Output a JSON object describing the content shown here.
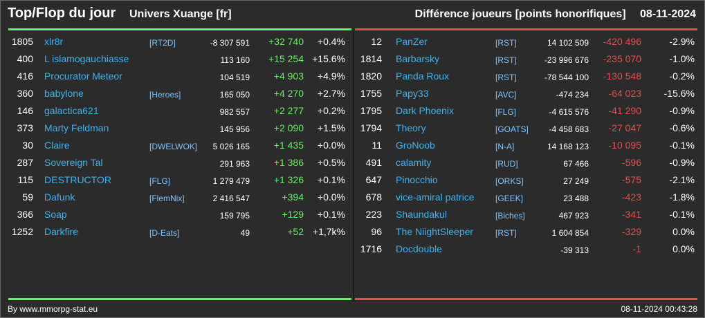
{
  "header": {
    "title": "Top/Flop du jour",
    "universe": "Univers Xuange [fr]",
    "category": "Différence joueurs [points honorifiques]",
    "date": "08-11-2024"
  },
  "colors": {
    "positive": "#66ee66",
    "negative": "#e05050",
    "name": "#3fb2ee"
  },
  "top": [
    {
      "rank": "1805",
      "name": "xlr8r",
      "guild": "[RT2D]",
      "total": "-8 307 591",
      "diff": "+32 740",
      "pct": "+0.4%"
    },
    {
      "rank": "400",
      "name": "L islamogauchiasse",
      "guild": "",
      "total": "113 160",
      "diff": "+15 254",
      "pct": "+15.6%"
    },
    {
      "rank": "416",
      "name": "Procurator Meteor",
      "guild": "",
      "total": "104 519",
      "diff": "+4 903",
      "pct": "+4.9%"
    },
    {
      "rank": "360",
      "name": "babylone",
      "guild": "[Heroes]",
      "total": "165 050",
      "diff": "+4 270",
      "pct": "+2.7%"
    },
    {
      "rank": "146",
      "name": "galactica621",
      "guild": "",
      "total": "982 557",
      "diff": "+2 277",
      "pct": "+0.2%"
    },
    {
      "rank": "373",
      "name": "Marty Feldman",
      "guild": "",
      "total": "145 956",
      "diff": "+2 090",
      "pct": "+1.5%"
    },
    {
      "rank": "30",
      "name": "Claire",
      "guild": "[DWELWOK]",
      "total": "5 026 165",
      "diff": "+1 435",
      "pct": "+0.0%"
    },
    {
      "rank": "287",
      "name": "Sovereign Tal",
      "guild": "",
      "total": "291 963",
      "diff": "+1 386",
      "pct": "+0.5%"
    },
    {
      "rank": "115",
      "name": "DESTRUCTOR",
      "guild": "[FLG]",
      "total": "1 279 479",
      "diff": "+1 326",
      "pct": "+0.1%"
    },
    {
      "rank": "59",
      "name": "Dafunk",
      "guild": "[FlemNix]",
      "total": "2 416 547",
      "diff": "+394",
      "pct": "+0.0%"
    },
    {
      "rank": "366",
      "name": "Soap",
      "guild": "",
      "total": "159 795",
      "diff": "+129",
      "pct": "+0.1%"
    },
    {
      "rank": "1252",
      "name": "Darkfire",
      "guild": "[D-Eats]",
      "total": "49",
      "diff": "+52",
      "pct": "+1,7k%"
    }
  ],
  "flop": [
    {
      "rank": "12",
      "name": "PanZer",
      "guild": "[RST]",
      "total": "14 102 509",
      "diff": "-420 496",
      "pct": "-2.9%"
    },
    {
      "rank": "1814",
      "name": "Barbarsky",
      "guild": "[RST]",
      "total": "-23 996 676",
      "diff": "-235 070",
      "pct": "-1.0%"
    },
    {
      "rank": "1820",
      "name": "Panda Roux",
      "guild": "[RST]",
      "total": "-78 544 100",
      "diff": "-130 548",
      "pct": "-0.2%"
    },
    {
      "rank": "1755",
      "name": "Papy33",
      "guild": "[AVC]",
      "total": "-474 234",
      "diff": "-64 023",
      "pct": "-15.6%"
    },
    {
      "rank": "1795",
      "name": "Dark Phoenix",
      "guild": "[FLG]",
      "total": "-4 615 576",
      "diff": "-41 290",
      "pct": "-0.9%"
    },
    {
      "rank": "1794",
      "name": "Theory",
      "guild": "[GOATS]",
      "total": "-4 458 683",
      "diff": "-27 047",
      "pct": "-0.6%"
    },
    {
      "rank": "11",
      "name": "GroNoob",
      "guild": "[N-A]",
      "total": "14 168 123",
      "diff": "-10 095",
      "pct": "-0.1%"
    },
    {
      "rank": "491",
      "name": "calamity",
      "guild": "[RUD]",
      "total": "67 466",
      "diff": "-596",
      "pct": "-0.9%"
    },
    {
      "rank": "647",
      "name": "Pinocchio",
      "guild": "[ORKS]",
      "total": "27 249",
      "diff": "-575",
      "pct": "-2.1%"
    },
    {
      "rank": "678",
      "name": "vice-amiral patrice",
      "guild": "[GEEK]",
      "total": "23 488",
      "diff": "-423",
      "pct": "-1.8%"
    },
    {
      "rank": "223",
      "name": "Shaundakul",
      "guild": "[Biches]",
      "total": "467 923",
      "diff": "-341",
      "pct": "-0.1%"
    },
    {
      "rank": "96",
      "name": "The NiightSleeper",
      "guild": "[RST]",
      "total": "1 604 854",
      "diff": "-329",
      "pct": "0.0%"
    },
    {
      "rank": "1716",
      "name": "Docdouble",
      "guild": "",
      "total": "-39 313",
      "diff": "-1",
      "pct": "0.0%"
    }
  ],
  "footer": {
    "source": "By www.mmorpg-stat.eu",
    "timestamp": "08-11-2024 00:43:28"
  }
}
